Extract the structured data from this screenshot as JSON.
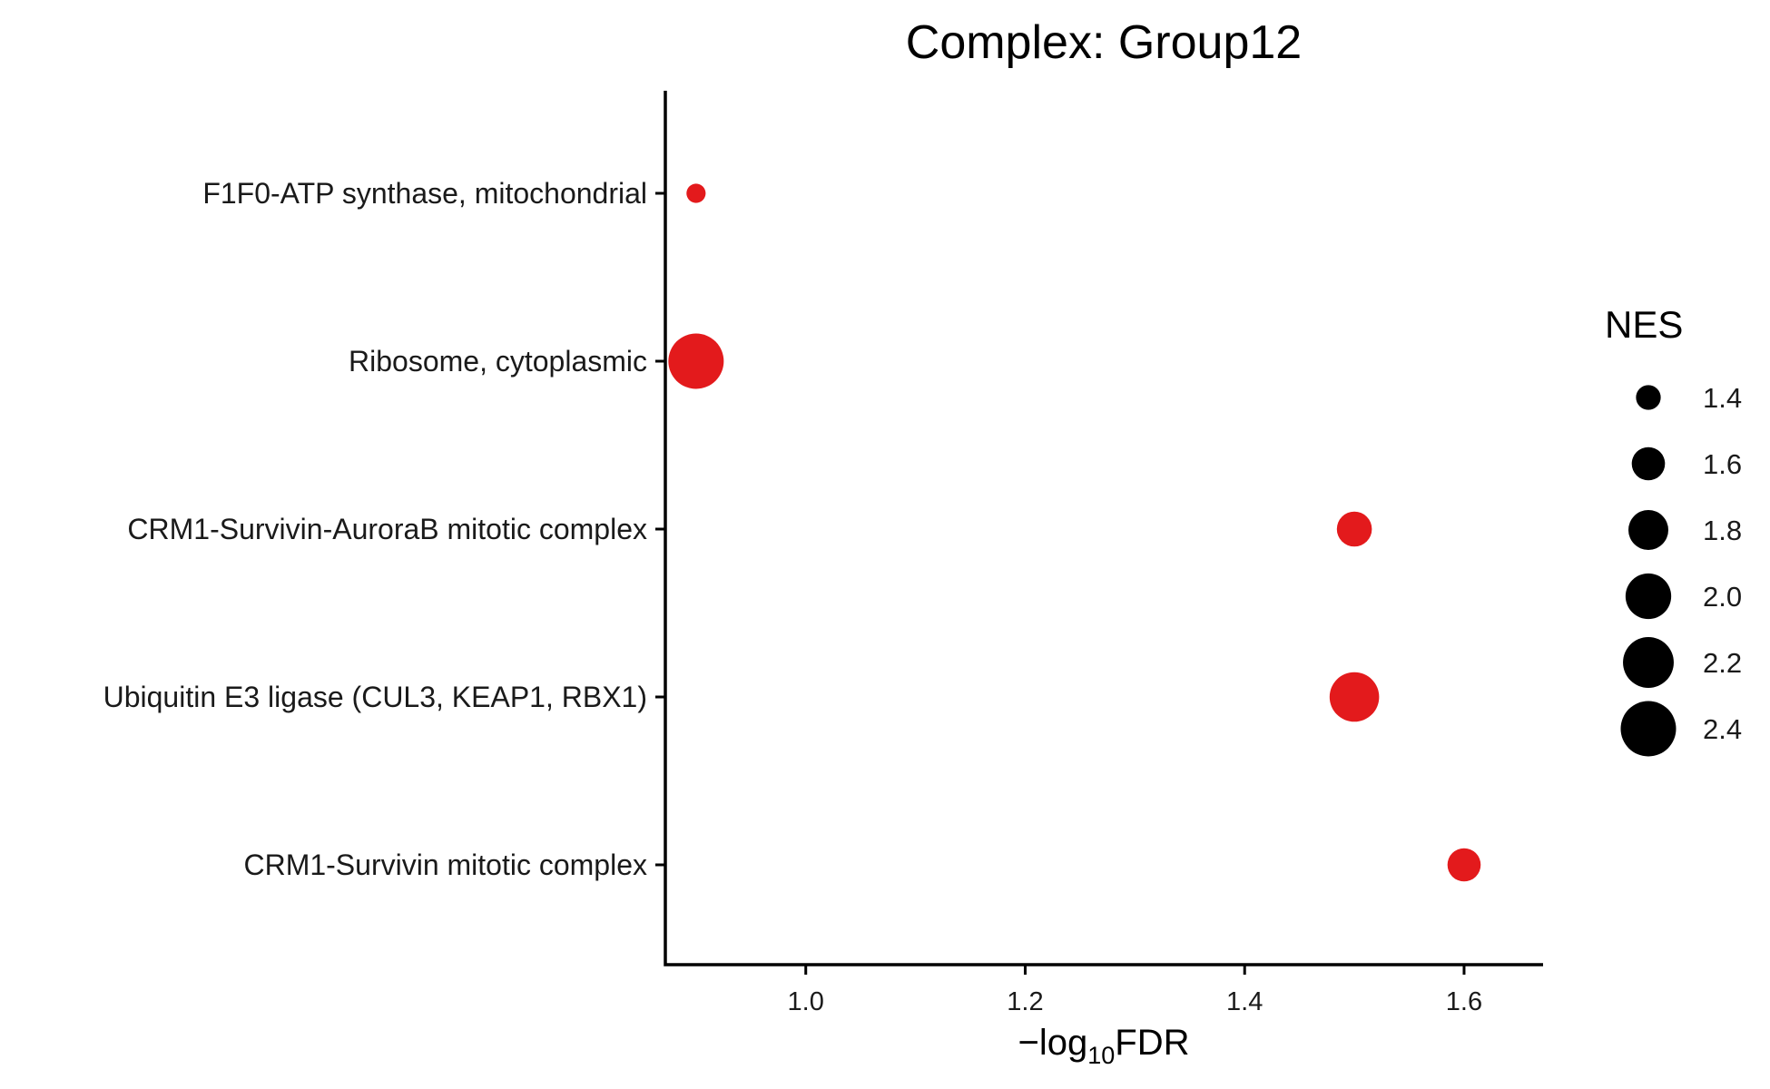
{
  "chart_data": {
    "type": "scatter",
    "title": "Complex: Group12",
    "xlabel": {
      "prefix": "−log",
      "sub": "10",
      "suffix": "FDR"
    },
    "ylabel": "",
    "xlim": [
      0.872,
      1.672
    ],
    "xticks": [
      1.0,
      1.2,
      1.4,
      1.6
    ],
    "xtick_labels": [
      "1.0",
      "1.2",
      "1.4",
      "1.6"
    ],
    "categories": [
      "F1F0-ATP synthase, mitochondrial",
      "Ribosome, cytoplasmic",
      "CRM1-Survivin-AuroraB mitotic complex",
      "Ubiquitin E3 ligase (CUL3, KEAP1, RBX1)",
      "CRM1-Survivin mitotic complex"
    ],
    "points": [
      {
        "category": "F1F0-ATP synthase, mitochondrial",
        "x": 0.9,
        "nes": 1.3
      },
      {
        "category": "Ribosome, cytoplasmic",
        "x": 0.9,
        "nes": 2.4
      },
      {
        "category": "CRM1-Survivin-AuroraB mitotic complex",
        "x": 1.5,
        "nes": 1.65
      },
      {
        "category": "Ubiquitin E3 ligase (CUL3, KEAP1, RBX1)",
        "x": 1.5,
        "nes": 2.15
      },
      {
        "category": "CRM1-Survivin mitotic complex",
        "x": 1.6,
        "nes": 1.6
      }
    ],
    "point_color": "#e31a1c",
    "grid": false,
    "legend": {
      "title": "NES",
      "position": "right",
      "entries": [
        {
          "value": 1.4,
          "label": "1.4"
        },
        {
          "value": 1.6,
          "label": "1.6"
        },
        {
          "value": 1.8,
          "label": "1.8"
        },
        {
          "value": 2.0,
          "label": "2.0"
        },
        {
          "value": 2.2,
          "label": "2.2"
        },
        {
          "value": 2.4,
          "label": "2.4"
        }
      ],
      "color": "#000000"
    }
  }
}
